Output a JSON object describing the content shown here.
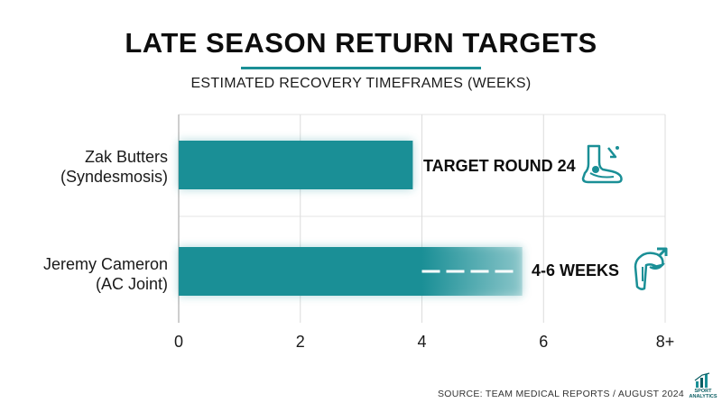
{
  "title": "LATE SEASON RETURN TARGETS",
  "subtitle": "ESTIMATED RECOVERY TIMEFRAMES (WEEKS)",
  "source": "SOURCE: TEAM MEDICAL REPORTS / AUGUST 2024",
  "logo": {
    "line1": "SPORT",
    "line2": "ANALYTICS"
  },
  "colors": {
    "bar": "#1a8f96",
    "accent": "#1a8f96",
    "text": "#111111"
  },
  "chart_data": {
    "type": "bar",
    "orientation": "horizontal",
    "title": "LATE SEASON RETURN TARGETS",
    "subtitle": "ESTIMATED RECOVERY TIMEFRAMES (WEEKS)",
    "categories": [
      {
        "line1": "Zak Butters",
        "line2": "(Syndesmosis)"
      },
      {
        "line1": "Jeremy Cameron",
        "line2": "(AC Joint)"
      }
    ],
    "values": [
      3.85,
      5.65
    ],
    "range_low": [
      null,
      4
    ],
    "bar_labels": [
      "TARGET ROUND 24",
      "4-6 WEEKS"
    ],
    "icons": [
      "ankle-icon",
      "shoulder-icon"
    ],
    "xlim": [
      0,
      8
    ],
    "xticks": [
      "0",
      "2",
      "4",
      "6",
      "8+"
    ],
    "grid": true,
    "legend": "none"
  }
}
